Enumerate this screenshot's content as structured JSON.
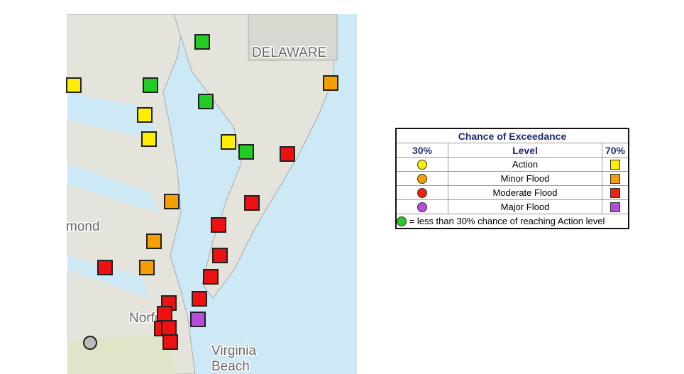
{
  "map": {
    "labels": {
      "state": "DELAWARE",
      "city_left": "mond",
      "city_norfolk": "Norfolk",
      "city_vb": [
        "Virginia",
        "Beach"
      ]
    }
  },
  "legend": {
    "title": "Chance of Exceedance",
    "headers": [
      "30%",
      "Level",
      "70%"
    ],
    "rows": [
      "Action",
      "Minor Flood",
      "Moderate Flood",
      "Major Flood"
    ],
    "footer": "= less than 30% chance of reaching Action level"
  }
}
